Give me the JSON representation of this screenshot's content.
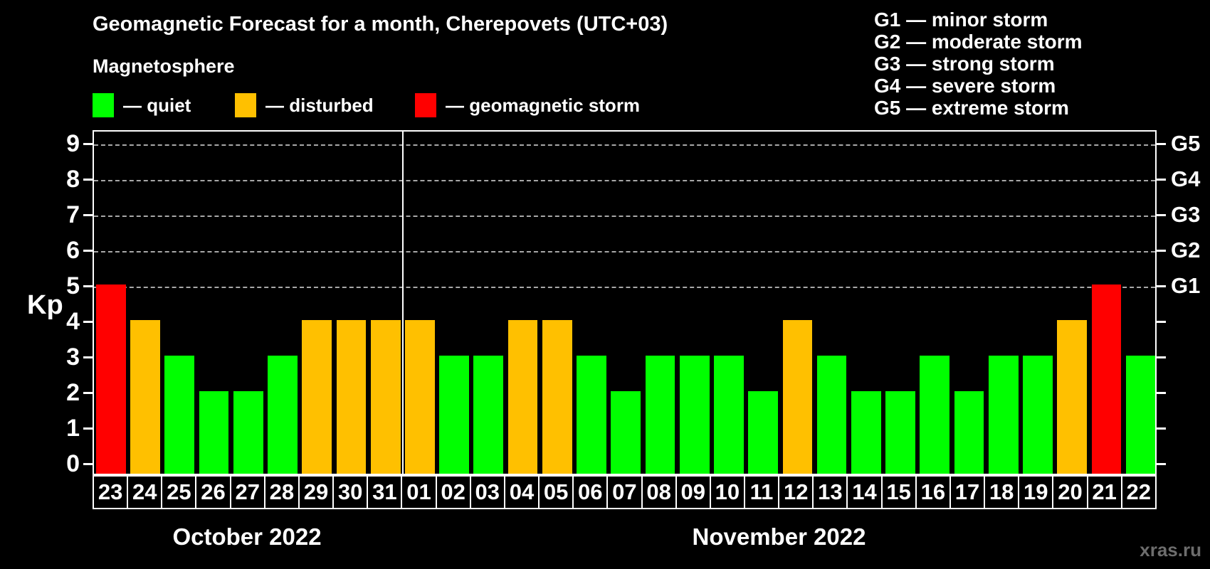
{
  "title": "Geomagnetic Forecast for a month, Cherepovets (UTC+03)",
  "subtitle": "Magnetosphere",
  "legend": [
    {
      "key": "quiet",
      "label": "— quiet",
      "color": "#00ff00"
    },
    {
      "key": "disturbed",
      "label": "— disturbed",
      "color": "#ffc000"
    },
    {
      "key": "storm",
      "label": "— geomagnetic storm",
      "color": "#ff0000"
    }
  ],
  "g_scale_legend": [
    {
      "code": "G1",
      "label": "G1 — minor storm"
    },
    {
      "code": "G2",
      "label": "G2 — moderate storm"
    },
    {
      "code": "G3",
      "label": "G3 — strong storm"
    },
    {
      "code": "G4",
      "label": "G4 — severe storm"
    },
    {
      "code": "G5",
      "label": "G5 — extreme storm"
    }
  ],
  "watermark": "xras.ru",
  "chart_data": {
    "type": "bar",
    "title": "Geomagnetic Forecast for a month, Cherepovets (UTC+03)",
    "ylabel": "Kp",
    "ylim": [
      0,
      9
    ],
    "yticks": [
      0,
      1,
      2,
      3,
      4,
      5,
      6,
      7,
      8,
      9
    ],
    "gridlines_at": [
      5,
      6,
      7,
      8,
      9
    ],
    "grid_on": true,
    "legend_position": "top-left",
    "right_axis": [
      {
        "kp": 5,
        "label": "G1"
      },
      {
        "kp": 6,
        "label": "G2"
      },
      {
        "kp": 7,
        "label": "G3"
      },
      {
        "kp": 8,
        "label": "G4"
      },
      {
        "kp": 9,
        "label": "G5"
      }
    ],
    "color_rule": {
      "quiet_max_kp": 3,
      "disturbed_kp": 4,
      "storm_min_kp": 5
    },
    "colors": {
      "quiet": "#00ff00",
      "disturbed": "#ffc000",
      "storm": "#ff0000"
    },
    "groups": [
      {
        "label": "October 2022",
        "days": [
          {
            "date": "23",
            "kp": 5
          },
          {
            "date": "24",
            "kp": 4
          },
          {
            "date": "25",
            "kp": 3
          },
          {
            "date": "26",
            "kp": 2
          },
          {
            "date": "27",
            "kp": 2
          },
          {
            "date": "28",
            "kp": 3
          },
          {
            "date": "29",
            "kp": 4
          },
          {
            "date": "30",
            "kp": 4
          },
          {
            "date": "31",
            "kp": 4
          }
        ]
      },
      {
        "label": "November 2022",
        "days": [
          {
            "date": "01",
            "kp": 4
          },
          {
            "date": "02",
            "kp": 3
          },
          {
            "date": "03",
            "kp": 3
          },
          {
            "date": "04",
            "kp": 4
          },
          {
            "date": "05",
            "kp": 4
          },
          {
            "date": "06",
            "kp": 3
          },
          {
            "date": "07",
            "kp": 2
          },
          {
            "date": "08",
            "kp": 3
          },
          {
            "date": "09",
            "kp": 3
          },
          {
            "date": "10",
            "kp": 3
          },
          {
            "date": "11",
            "kp": 2
          },
          {
            "date": "12",
            "kp": 4
          },
          {
            "date": "13",
            "kp": 3
          },
          {
            "date": "14",
            "kp": 2
          },
          {
            "date": "15",
            "kp": 2
          },
          {
            "date": "16",
            "kp": 3
          },
          {
            "date": "17",
            "kp": 2
          },
          {
            "date": "18",
            "kp": 3
          },
          {
            "date": "19",
            "kp": 3
          },
          {
            "date": "20",
            "kp": 4
          },
          {
            "date": "21",
            "kp": 5
          },
          {
            "date": "22",
            "kp": 3
          }
        ]
      }
    ]
  }
}
